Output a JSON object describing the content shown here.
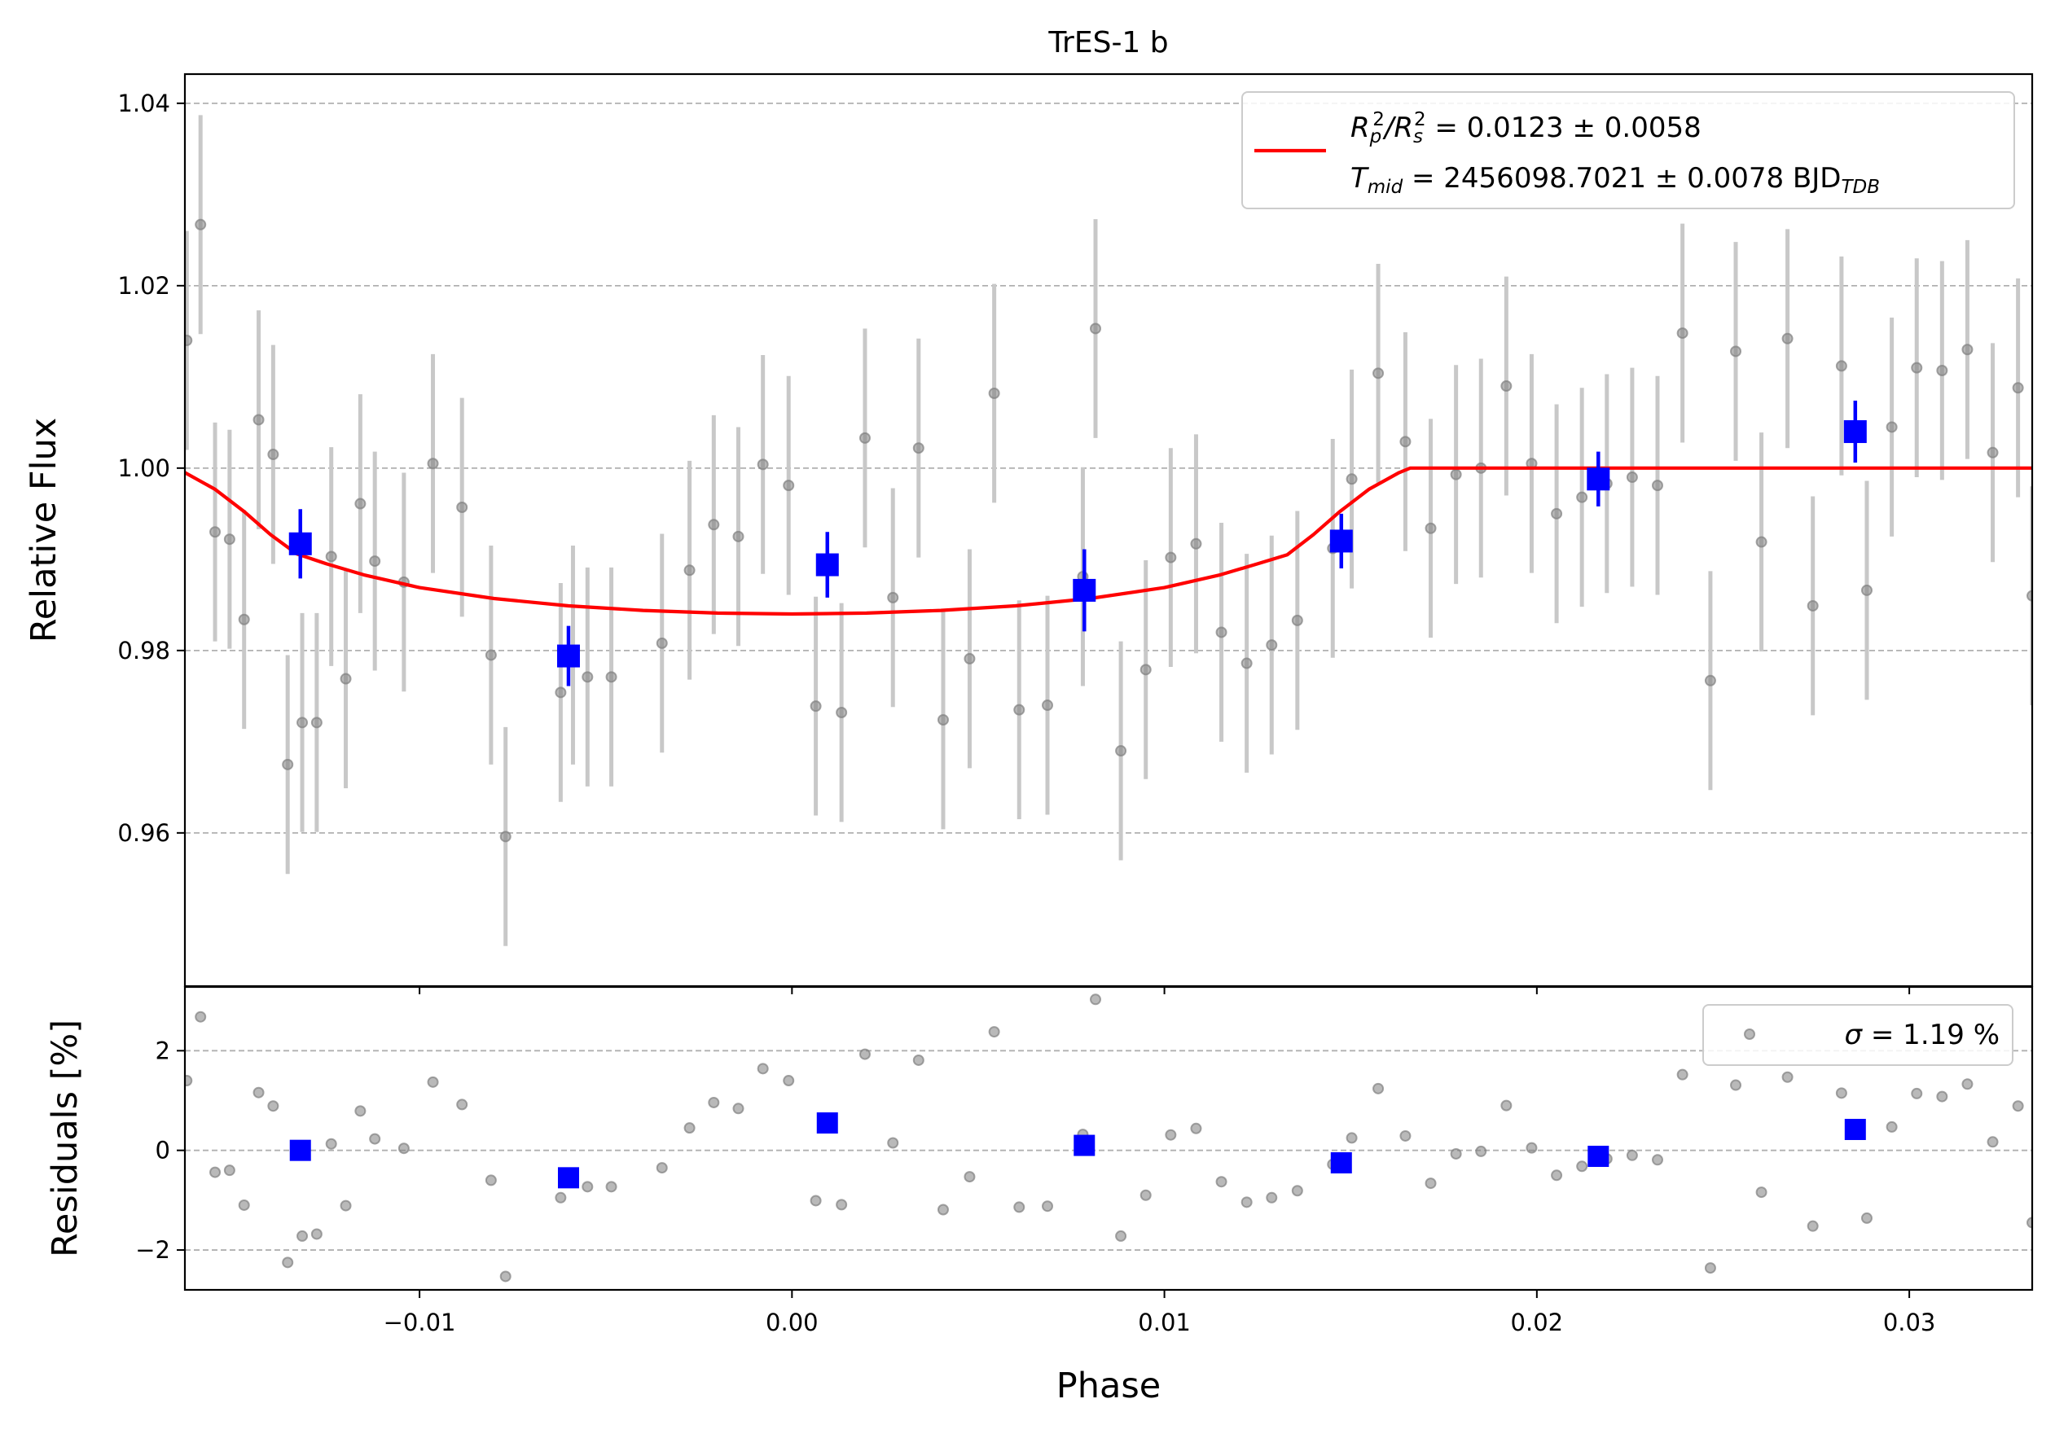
{
  "chart_data": [
    {
      "panel": "main",
      "type": "scatter",
      "title": "TrES-1 b",
      "xlabel": "",
      "ylabel": "Relative Flux",
      "xlim": [
        -0.0163,
        0.0333
      ],
      "ylim": [
        0.9432,
        1.0432
      ],
      "xticks": [
        -0.01,
        0.0,
        0.01,
        0.02,
        0.03
      ],
      "xtick_labels": [
        "−0.01",
        "0.00",
        "0.01",
        "0.02",
        "0.03"
      ],
      "yticks": [
        0.96,
        0.98,
        1.0,
        1.02,
        1.04
      ],
      "ytick_labels": [
        "0.96",
        "0.98",
        "1.00",
        "1.02",
        "1.04"
      ],
      "grid": "horizontal dashed",
      "legend_position": "top-right",
      "legend": {
        "line1_prefix": "R",
        "line1_sub1": "p",
        "line1_sup1": "2",
        "line1_slash": "/R",
        "line1_sub2": "s",
        "line1_sup2": "2",
        "line1_value": " = 0.0123 ± 0.0058",
        "line2_prefix": "T",
        "line2_sub": "mid",
        "line2_value": " = 2456098.7021 ± 0.0078 BJD",
        "line2_unit_sub": "TDB"
      },
      "colors": {
        "data": "#808080",
        "errorbar": "#c8c8c8",
        "binned": "#0000ff",
        "model": "#ff0000",
        "grid": "#b0b0b0"
      },
      "series": [
        {
          "kind": "data_points",
          "x": [
            -0.01625,
            -0.01588,
            -0.01549,
            -0.0151,
            -0.01471,
            -0.01432,
            -0.01393,
            -0.01354,
            -0.01315,
            -0.01276,
            -0.01237,
            -0.01198,
            -0.01159,
            -0.0112,
            -0.01042,
            -0.00964,
            -0.00886,
            -0.00808,
            -0.00769,
            -0.00621,
            -0.00588,
            -0.00549,
            -0.00485,
            -0.00349,
            -0.00275,
            -0.0021,
            -0.00144,
            -0.00078,
            -9e-05,
            0.00064,
            0.00133,
            0.00196,
            0.00271,
            0.0034,
            0.00406,
            0.00477,
            0.00543,
            0.0061,
            0.00686,
            0.00781,
            0.00815,
            0.00883,
            0.0095,
            0.01017,
            0.01085,
            0.01153,
            0.01221,
            0.01288,
            0.01357,
            0.01452,
            0.01503,
            0.01574,
            0.01647,
            0.01715,
            0.01783,
            0.0185,
            0.01918,
            0.01986,
            0.02053,
            0.02121,
            0.02188,
            0.02256,
            0.02324,
            0.02391,
            0.02466,
            0.02534,
            0.02603,
            0.02673,
            0.02741,
            0.02818,
            0.02886,
            0.02953,
            0.0302,
            0.03088,
            0.03156,
            0.03224,
            0.03292,
            0.0333
          ],
          "y": [
            1.014,
            1.0267,
            0.993,
            0.9922,
            0.9834,
            1.0053,
            1.0015,
            0.9675,
            0.9721,
            0.9721,
            0.9903,
            0.9769,
            0.9961,
            0.9898,
            0.9875,
            1.0005,
            0.9957,
            0.9795,
            0.9596,
            0.9754,
            0.9795,
            0.9771,
            0.9771,
            0.9808,
            0.9888,
            0.9938,
            0.9925,
            1.0004,
            0.9981,
            0.9739,
            0.9732,
            1.0033,
            0.9858,
            1.0022,
            0.9724,
            0.9791,
            1.0082,
            0.9735,
            0.974,
            0.9881,
            1.0153,
            0.969,
            0.9779,
            0.9902,
            0.9917,
            0.982,
            0.9786,
            0.9806,
            0.9833,
            0.9912,
            0.9988,
            1.0104,
            1.0029,
            0.9934,
            0.9993,
            1.0,
            1.009,
            1.0005,
            0.995,
            0.9968,
            0.9983,
            0.999,
            0.9981,
            1.0148,
            0.9767,
            1.0128,
            0.9919,
            1.0142,
            0.9849,
            1.0112,
            0.9866,
            1.0045,
            1.011,
            1.0107,
            1.013,
            1.0017,
            1.0088,
            0.986
          ],
          "yerr": 0.012
        },
        {
          "kind": "binned",
          "x": [
            -0.0132,
            -0.006,
            0.00095,
            0.00785,
            0.01475,
            0.02165,
            0.02855
          ],
          "y": [
            0.9917,
            0.9794,
            0.9894,
            0.9866,
            0.992,
            0.9988,
            1.004
          ],
          "yerr": [
            0.0038,
            0.0033,
            0.0036,
            0.0045,
            0.003,
            0.003,
            0.0034
          ]
        },
        {
          "kind": "model",
          "x": [
            -0.0163,
            -0.0155,
            -0.0147,
            -0.014,
            -0.0133,
            -0.0125,
            -0.0115,
            -0.01,
            -0.008,
            -0.006,
            -0.004,
            -0.002,
            0.0,
            0.002,
            0.004,
            0.006,
            0.008,
            0.01,
            0.0115,
            0.0125,
            0.0133,
            0.014,
            0.0147,
            0.0155,
            0.0163,
            0.0166,
            0.02,
            0.025,
            0.03,
            0.0333
          ],
          "y": [
            0.9995,
            0.9977,
            0.9952,
            0.9927,
            0.9906,
            0.9895,
            0.9883,
            0.9869,
            0.9857,
            0.9849,
            0.9844,
            0.9841,
            0.984,
            0.9841,
            0.9844,
            0.9849,
            0.9857,
            0.9869,
            0.9883,
            0.9895,
            0.9905,
            0.9927,
            0.9952,
            0.9977,
            0.9995,
            1.0,
            1.0,
            1.0,
            1.0,
            1.0
          ]
        }
      ]
    },
    {
      "panel": "residuals",
      "type": "scatter",
      "xlabel": "Phase",
      "ylabel": "Residuals [%]",
      "xlim": [
        -0.0163,
        0.0333
      ],
      "ylim": [
        -2.8,
        3.28
      ],
      "yticks": [
        -2,
        0,
        2
      ],
      "ytick_labels": [
        "−2",
        "0",
        "2"
      ],
      "xticks": [
        -0.01,
        0.0,
        0.01,
        0.02,
        0.03
      ],
      "xtick_labels": [
        "−0.01",
        "0.00",
        "0.01",
        "0.02",
        "0.03"
      ],
      "grid": "horizontal dashed",
      "legend_position": "top-right",
      "legend": {
        "sigma_symbol": "σ",
        "sigma_value": " = 1.19 %"
      },
      "series": [
        {
          "kind": "data_points",
          "x": [
            -0.01625,
            -0.01588,
            -0.01549,
            -0.0151,
            -0.01471,
            -0.01432,
            -0.01393,
            -0.01354,
            -0.01315,
            -0.01276,
            -0.01237,
            -0.01198,
            -0.01159,
            -0.0112,
            -0.01042,
            -0.00964,
            -0.00886,
            -0.00808,
            -0.00769,
            -0.00621,
            -0.00588,
            -0.00549,
            -0.00485,
            -0.00349,
            -0.00275,
            -0.0021,
            -0.00144,
            -0.00078,
            -9e-05,
            0.00064,
            0.00133,
            0.00196,
            0.00271,
            0.0034,
            0.00406,
            0.00477,
            0.00543,
            0.0061,
            0.00686,
            0.00781,
            0.00815,
            0.00883,
            0.0095,
            0.01017,
            0.01085,
            0.01153,
            0.01221,
            0.01288,
            0.01357,
            0.01452,
            0.01503,
            0.01574,
            0.01647,
            0.01715,
            0.01783,
            0.0185,
            0.01918,
            0.01986,
            0.02053,
            0.02121,
            0.02188,
            0.02256,
            0.02324,
            0.02391,
            0.02466,
            0.02534,
            0.02603,
            0.02673,
            0.02741,
            0.02818,
            0.02886,
            0.02953,
            0.0302,
            0.03088,
            0.03156,
            0.03224,
            0.03292,
            0.0333
          ],
          "y": [
            1.4,
            2.68,
            -0.44,
            -0.4,
            -1.1,
            1.16,
            0.89,
            -2.25,
            -1.72,
            -1.68,
            0.13,
            -1.11,
            0.79,
            0.23,
            0.04,
            1.37,
            0.92,
            -0.6,
            -2.53,
            -0.95,
            -0.55,
            -0.73,
            -0.73,
            -0.35,
            0.45,
            0.96,
            0.84,
            1.64,
            1.4,
            -1.01,
            -1.09,
            1.93,
            0.15,
            1.81,
            -1.19,
            -0.53,
            2.38,
            -1.14,
            -1.12,
            0.32,
            3.03,
            -1.72,
            -0.9,
            0.31,
            0.44,
            -0.63,
            -1.04,
            -0.95,
            -0.81,
            -0.28,
            0.25,
            1.24,
            0.29,
            -0.66,
            -0.07,
            -0.02,
            0.9,
            0.05,
            -0.5,
            -0.32,
            -0.17,
            -0.1,
            -0.19,
            1.52,
            -2.36,
            1.31,
            -0.84,
            1.47,
            -1.52,
            1.15,
            -1.36,
            0.47,
            1.14,
            1.08,
            1.33,
            0.17,
            0.89,
            -1.45
          ]
        },
        {
          "kind": "binned",
          "x": [
            -0.0132,
            -0.006,
            0.00095,
            0.00785,
            0.01475,
            0.02165,
            0.02855
          ],
          "y": [
            0.0,
            -0.55,
            0.55,
            0.1,
            -0.25,
            -0.12,
            0.42
          ]
        }
      ]
    }
  ]
}
